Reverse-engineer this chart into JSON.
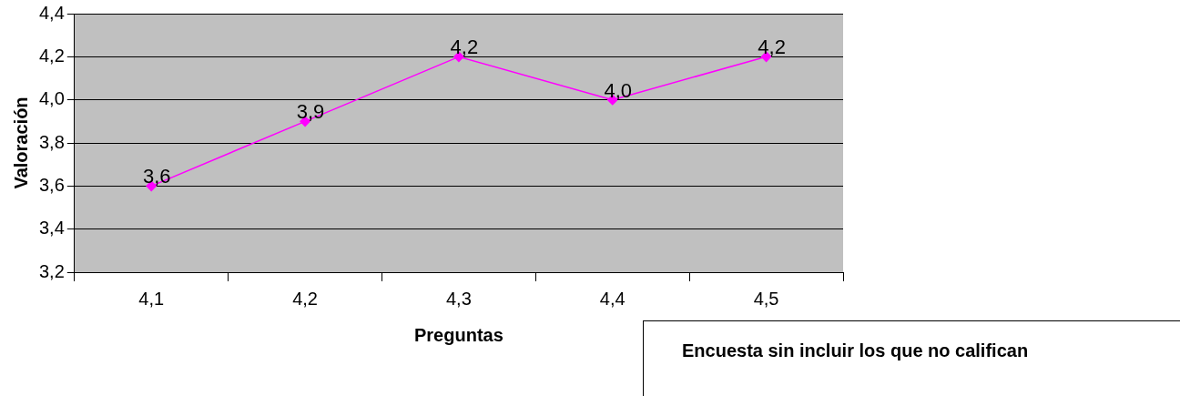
{
  "chart_data": {
    "type": "line",
    "xlabel": "Preguntas",
    "ylabel": "Valoración",
    "categories": [
      "4,1",
      "4,2",
      "4,3",
      "4,4",
      "4,5"
    ],
    "series": [
      {
        "color": "#ff00ff",
        "values": [
          3.6,
          3.9,
          4.2,
          4.0,
          4.2
        ],
        "value_labels": [
          "3,6",
          "3,9",
          "4,2",
          "4,0",
          "4,2"
        ]
      }
    ],
    "ylim": [
      3.2,
      4.4
    ],
    "yticks": [
      {
        "value": 3.2,
        "label": "3,2"
      },
      {
        "value": 3.4,
        "label": "3,4"
      },
      {
        "value": 3.6,
        "label": "3,6"
      },
      {
        "value": 3.8,
        "label": "3,8"
      },
      {
        "value": 4.0,
        "label": "4,0"
      },
      {
        "value": 4.2,
        "label": "4,2"
      },
      {
        "value": 4.4,
        "label": "4,4"
      }
    ],
    "grid": "y",
    "legend": false,
    "marker": "diamond",
    "line_style": "solid",
    "annotations": [
      "Encuesta sin incluir los que no califican"
    ]
  }
}
